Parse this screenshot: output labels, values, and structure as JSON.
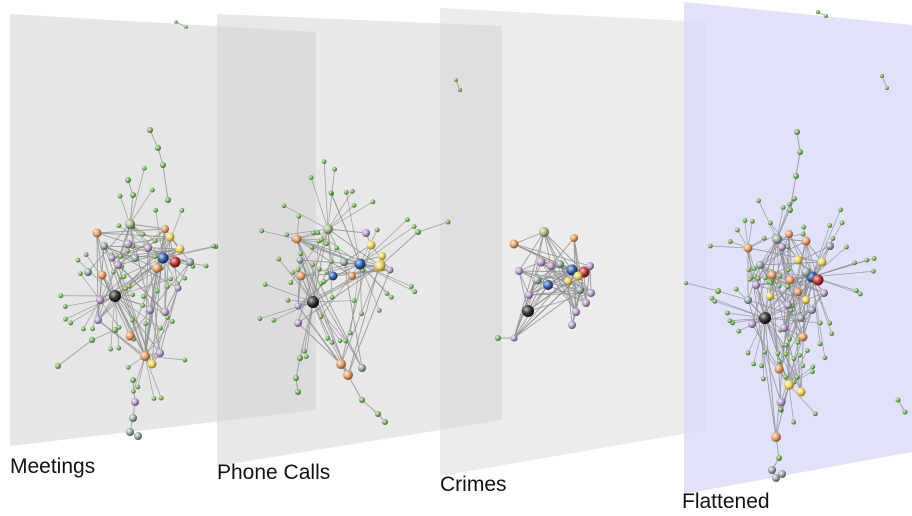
{
  "figure": {
    "layers": [
      {
        "id": "meetings",
        "label": "Meetings",
        "tint": "#d2d2d2"
      },
      {
        "id": "phone-calls",
        "label": "Phone Calls",
        "tint": "#d2d2d2"
      },
      {
        "id": "crimes",
        "label": "Crimes",
        "tint": "#d2d2d2"
      },
      {
        "id": "flattened",
        "label": "Flattened",
        "tint": "#d8d8f8"
      }
    ],
    "node_colors": {
      "peripheral": "#7fb069",
      "grey": "#9aa8a8",
      "purple": "#b9a3c8",
      "orange": "#e0a070",
      "yellow": "#e8d46a",
      "blue": "#3c64a8",
      "red": "#b83a3a",
      "dark": "#3a3a3a",
      "sage": "#a8b890"
    },
    "edge_color": "#8f8f8f"
  }
}
